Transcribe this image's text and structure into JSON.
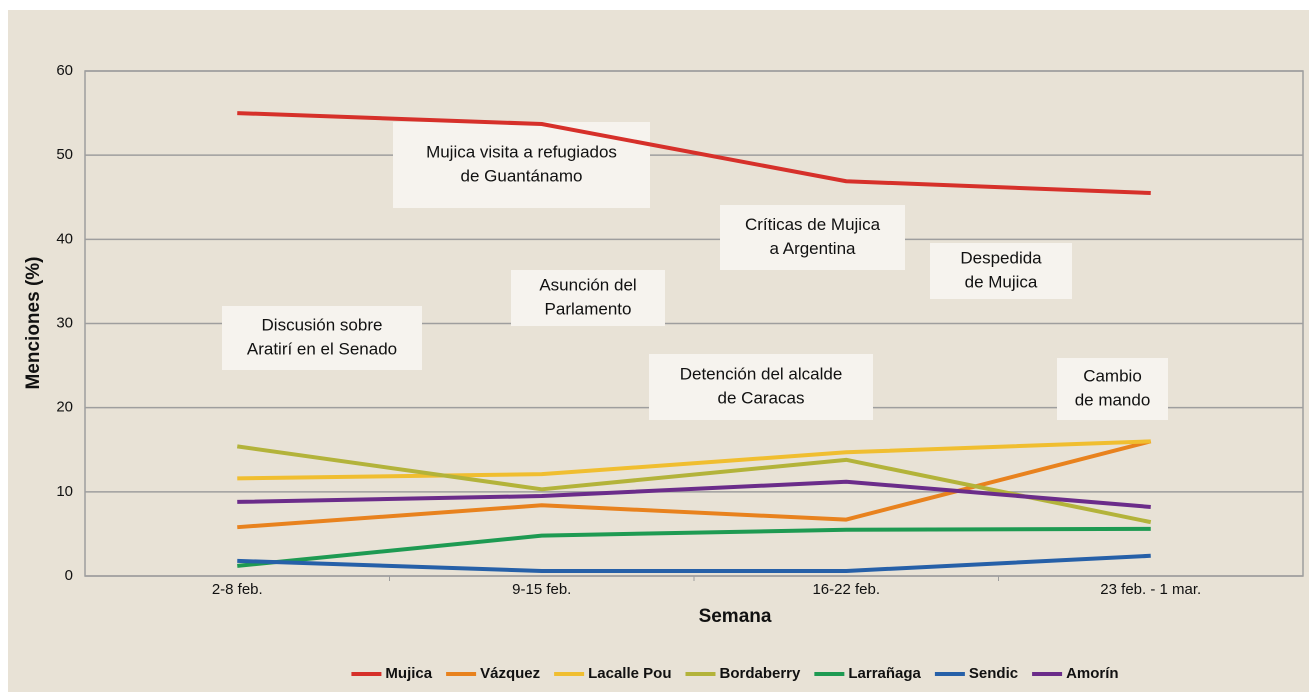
{
  "chart_data": {
    "type": "line",
    "categories": [
      "2-8 feb.",
      "9-15 feb.",
      "16-22 feb.",
      "23 feb. - 1 mar."
    ],
    "x_label": "Semana",
    "y_label": "Menciones (%)",
    "ylim": [
      0,
      60
    ],
    "yticks": [
      0,
      10,
      20,
      30,
      40,
      50,
      60
    ],
    "grid": true,
    "legend": "bottom",
    "series": [
      {
        "name": "Mujica",
        "color": "#d6302a",
        "values": [
          55.0,
          53.7,
          46.9,
          45.5
        ]
      },
      {
        "name": "Vázquez",
        "color": "#e8821e",
        "values": [
          5.8,
          8.4,
          6.7,
          16.0
        ]
      },
      {
        "name": "Lacalle Pou",
        "color": "#f0be30",
        "values": [
          11.6,
          12.1,
          14.7,
          16.0
        ]
      },
      {
        "name": "Bordaberry",
        "color": "#b3b33a",
        "values": [
          15.4,
          10.3,
          13.8,
          6.4
        ]
      },
      {
        "name": "Larrañaga",
        "color": "#1e9a52",
        "values": [
          1.2,
          4.8,
          5.5,
          5.6
        ]
      },
      {
        "name": "Sendic",
        "color": "#2660a8",
        "values": [
          1.8,
          0.6,
          0.6,
          2.4
        ]
      },
      {
        "name": "Amorín",
        "color": "#6b2c8a",
        "values": [
          8.8,
          9.5,
          11.2,
          8.2
        ]
      }
    ],
    "annotations": [
      {
        "lines": [
          "Mujica visita a refugiados",
          "de Guantánamo"
        ]
      },
      {
        "lines": [
          "Críticas de Mujica",
          "a Argentina"
        ]
      },
      {
        "lines": [
          "Despedida",
          "de Mujica"
        ]
      },
      {
        "lines": [
          "Asunción del",
          "Parlamento"
        ]
      },
      {
        "lines": [
          "Discusión sobre",
          "Aratirí en el Senado"
        ]
      },
      {
        "lines": [
          "Detención del alcalde",
          "de Caracas"
        ]
      },
      {
        "lines": [
          "Cambio",
          "de mando"
        ]
      }
    ]
  }
}
